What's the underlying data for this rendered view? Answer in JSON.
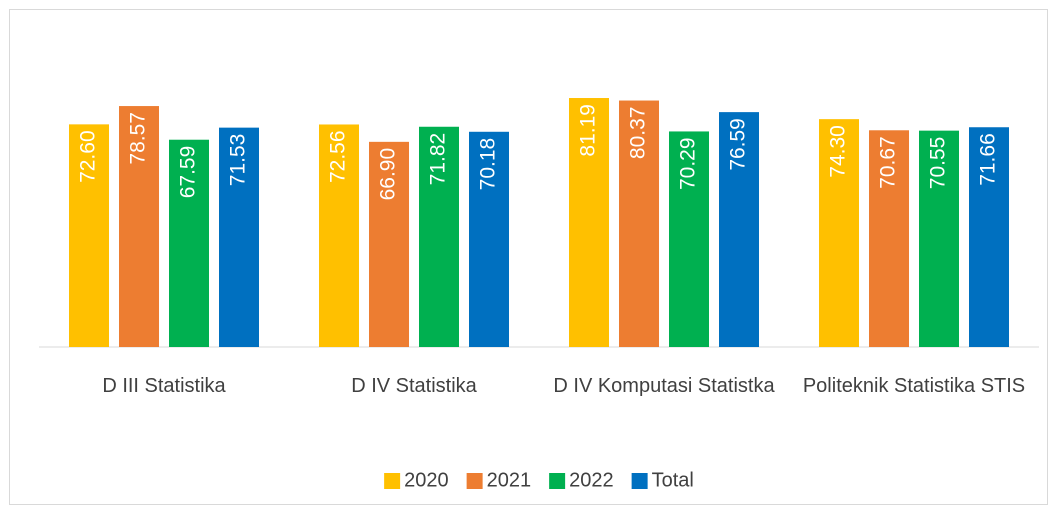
{
  "chart_data": {
    "type": "bar",
    "categories": [
      "D III Statistika",
      "D IV Statistika",
      "D IV Komputasi Statistka",
      "Politeknik Statistika STIS"
    ],
    "series": [
      {
        "name": "2020",
        "color": "#FFC000",
        "values": [
          72.6,
          72.56,
          81.19,
          74.3
        ],
        "value_labels": [
          "72.60",
          "72.56",
          "81.19",
          "74.30"
        ]
      },
      {
        "name": "2021",
        "color": "#ED7D31",
        "values": [
          78.57,
          66.9,
          80.37,
          70.67
        ],
        "value_labels": [
          "78.57",
          "66.90",
          "80.37",
          "70.67"
        ]
      },
      {
        "name": "2022",
        "color": "#00B050",
        "values": [
          67.59,
          71.82,
          70.29,
          70.55
        ],
        "value_labels": [
          "67.59",
          "71.82",
          "70.29",
          "70.55"
        ]
      },
      {
        "name": "Total",
        "color": "#0070C0",
        "values": [
          71.53,
          70.18,
          76.59,
          71.66
        ],
        "value_labels": [
          "71.53",
          "70.18",
          "76.59",
          "71.66"
        ]
      }
    ],
    "ylim": [
      0,
      90
    ],
    "legend": "bottom"
  }
}
